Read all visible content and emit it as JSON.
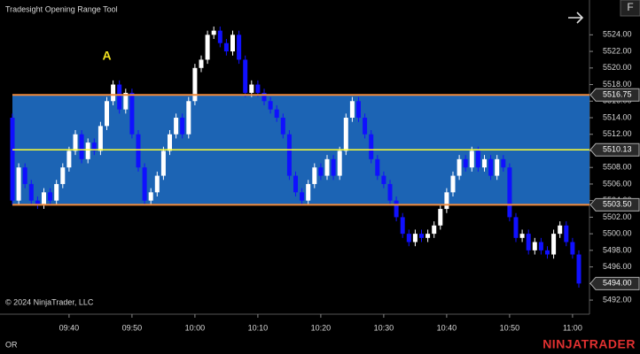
{
  "chart_data": {
    "type": "candlestick",
    "title": "Tradesight Opening Range Tool",
    "copyright": "© 2024 NinjaTrader, LLC",
    "footer_left": "OR",
    "brand": "NINJATRADER",
    "button": "F",
    "up_color": "#ffffff",
    "down_color": "#1010ff",
    "x": [
      "09:31",
      "09:32",
      "09:33",
      "09:34",
      "09:35",
      "09:36",
      "09:37",
      "09:38",
      "09:39",
      "09:40",
      "09:41",
      "09:42",
      "09:43",
      "09:44",
      "09:45",
      "09:46",
      "09:47",
      "09:48",
      "09:49",
      "09:50",
      "09:51",
      "09:52",
      "09:53",
      "09:54",
      "09:55",
      "09:56",
      "09:57",
      "09:58",
      "09:59",
      "10:00",
      "10:01",
      "10:02",
      "10:03",
      "10:04",
      "10:05",
      "10:06",
      "10:07",
      "10:08",
      "10:09",
      "10:10",
      "10:11",
      "10:12",
      "10:13",
      "10:14",
      "10:15",
      "10:16",
      "10:17",
      "10:18",
      "10:19",
      "10:20",
      "10:21",
      "10:22",
      "10:23",
      "10:24",
      "10:25",
      "10:26",
      "10:27",
      "10:28",
      "10:29",
      "10:30",
      "10:31",
      "10:32",
      "10:33",
      "10:34",
      "10:35",
      "10:36",
      "10:37",
      "10:38",
      "10:39",
      "10:40",
      "10:41",
      "10:42",
      "10:43",
      "10:44",
      "10:45",
      "10:46",
      "10:47",
      "10:48",
      "10:49",
      "10:50",
      "10:51",
      "10:52",
      "10:53",
      "10:54",
      "10:55",
      "10:56",
      "10:57",
      "10:58",
      "10:59",
      "11:00",
      "11:01"
    ],
    "open": [
      5514,
      5504,
      5508,
      5506,
      5504,
      5503.5,
      5505,
      5504,
      5506,
      5508,
      5510,
      5512,
      5509,
      5511,
      5510,
      5513,
      5516,
      5518,
      5515,
      5517,
      5512,
      5508,
      5504,
      5505,
      5507,
      5510,
      5512,
      5514,
      5512,
      5516,
      5520,
      5521,
      5524,
      5524.5,
      5523,
      5522,
      5524,
      5521,
      5517,
      5518,
      5517,
      5516,
      5515,
      5514,
      5512,
      5507,
      5505,
      5504,
      5506,
      5508,
      5507,
      5509,
      5507,
      5510,
      5514,
      5516,
      5514,
      5512,
      5509,
      5507,
      5506,
      5504,
      5502,
      5500,
      5499,
      5500,
      5499.5,
      5500,
      5501,
      5503,
      5505,
      5507,
      5509,
      5508,
      5510,
      5508,
      5509,
      5507,
      5509,
      5508,
      5502,
      5499.5,
      5500,
      5498,
      5499,
      5498,
      5497.5,
      5500,
      5501,
      5499,
      5497.5
    ],
    "high": [
      5514.5,
      5508.5,
      5508.5,
      5506.5,
      5504.5,
      5505.5,
      5505.5,
      5506.5,
      5508.5,
      5510.5,
      5512.5,
      5512.5,
      5511.5,
      5511.5,
      5513.5,
      5516.5,
      5518.5,
      5518.5,
      5517.5,
      5517.5,
      5512.5,
      5508.5,
      5505.5,
      5507.5,
      5510.5,
      5512.5,
      5514.5,
      5514.5,
      5516.5,
      5520.5,
      5521.5,
      5524.5,
      5525,
      5525,
      5523.5,
      5524.5,
      5524.5,
      5521.5,
      5518.5,
      5518.5,
      5517.5,
      5516.5,
      5515.5,
      5514.5,
      5512.5,
      5507.5,
      5505.5,
      5506.5,
      5508.5,
      5508.5,
      5509.5,
      5509.5,
      5510.5,
      5514.5,
      5516.5,
      5516.5,
      5514.5,
      5512.5,
      5509.5,
      5507.5,
      5506.5,
      5504.5,
      5502.5,
      5500.5,
      5500.5,
      5500.5,
      5500.5,
      5501.5,
      5503.5,
      5505.5,
      5507.5,
      5509.5,
      5509.5,
      5510.5,
      5510.5,
      5509.5,
      5509.5,
      5509.5,
      5509.5,
      5508.5,
      5502.5,
      5500.5,
      5500.5,
      5499.5,
      5499.5,
      5498.5,
      5500.5,
      5501.5,
      5501.5,
      5499.5,
      5498
    ],
    "low": [
      5503.5,
      5503.5,
      5505.5,
      5503.5,
      5503,
      5503,
      5503.5,
      5503.5,
      5505.5,
      5507.5,
      5509.5,
      5508.5,
      5508.5,
      5509.5,
      5509.5,
      5512.5,
      5515.5,
      5514.5,
      5514.5,
      5511.5,
      5507.5,
      5503.5,
      5503.5,
      5504.5,
      5506.5,
      5509.5,
      5511.5,
      5511.5,
      5511.5,
      5515.5,
      5519.5,
      5520.5,
      5523.5,
      5522.5,
      5521.5,
      5521.5,
      5520.5,
      5516.5,
      5516.5,
      5516.5,
      5515.5,
      5514.5,
      5513.5,
      5511.5,
      5506.5,
      5504.5,
      5503.5,
      5503.5,
      5505.5,
      5506.5,
      5506.5,
      5506.5,
      5506.5,
      5509.5,
      5513.5,
      5513.5,
      5511.5,
      5508.5,
      5506.5,
      5505.5,
      5503.5,
      5501.5,
      5499.5,
      5498.5,
      5498.5,
      5499,
      5499,
      5499.5,
      5500.5,
      5502.5,
      5504.5,
      5506.5,
      5507.5,
      5507.5,
      5507.5,
      5507.5,
      5506.5,
      5506.5,
      5507.5,
      5501.5,
      5499,
      5499,
      5497.5,
      5497.5,
      5497.5,
      5497,
      5497,
      5499.5,
      5498.5,
      5497,
      5493.5
    ],
    "close": [
      5504,
      5508,
      5506,
      5504,
      5503.5,
      5505,
      5504,
      5506,
      5508,
      5510,
      5512,
      5509,
      5511,
      5510,
      5513,
      5516,
      5518,
      5515,
      5517,
      5512,
      5508,
      5504,
      5505,
      5507,
      5510,
      5512,
      5514,
      5512,
      5516,
      5520,
      5521,
      5524,
      5524.5,
      5523,
      5522,
      5524,
      5521,
      5517,
      5518,
      5517,
      5516,
      5515,
      5514,
      5512,
      5507,
      5505,
      5504,
      5506,
      5508,
      5507,
      5509,
      5507,
      5510,
      5514,
      5516,
      5514,
      5512,
      5509,
      5507,
      5506,
      5504,
      5502,
      5500,
      5499,
      5500,
      5499.5,
      5500,
      5501,
      5503,
      5505,
      5507,
      5509,
      5508,
      5510,
      5508,
      5509,
      5507,
      5509,
      5508,
      5502,
      5499.5,
      5500,
      5498,
      5499,
      5498,
      5497.5,
      5500,
      5501,
      5499,
      5497.5,
      5494
    ],
    "ylim": [
      5490.3,
      5528.2
    ],
    "yticks": [
      {
        "value": 5492,
        "label": "5492.00"
      },
      {
        "value": 5494,
        "label": "5494.00"
      },
      {
        "value": 5496,
        "label": "5496.00"
      },
      {
        "value": 5498,
        "label": "5498.00"
      },
      {
        "value": 5500,
        "label": "5500.00"
      },
      {
        "value": 5502,
        "label": "5502.00"
      },
      {
        "value": 5504,
        "label": "5504.00"
      },
      {
        "value": 5506,
        "label": "5506.00"
      },
      {
        "value": 5508,
        "label": "5508.00"
      },
      {
        "value": 5510,
        "label": "5510.00"
      },
      {
        "value": 5512,
        "label": "5512.00"
      },
      {
        "value": 5514,
        "label": "5514.00"
      },
      {
        "value": 5516,
        "label": "5516.00"
      },
      {
        "value": 5518,
        "label": "5518.00"
      },
      {
        "value": 5520,
        "label": "5520.00"
      },
      {
        "value": 5522,
        "label": "5522.00"
      },
      {
        "value": 5524,
        "label": "5524.00"
      }
    ],
    "xticks": [
      "09:40",
      "09:50",
      "10:00",
      "10:10",
      "10:20",
      "10:30",
      "10:40",
      "10:50",
      "11:00"
    ],
    "range": {
      "high": 5516.75,
      "mid": 5510.13,
      "low": {
        "value": 5503.5,
        "label": "5503.50"
      },
      "fill": "#1c64b4",
      "edge_color": "#f08a3c",
      "mid_color": "#ffff30"
    },
    "last_price": {
      "value": 5494,
      "label": "5494.00"
    },
    "annotations": [
      {
        "text": "A",
        "x": "09:46",
        "y": 5521.4,
        "color": "#f0e020"
      }
    ]
  }
}
